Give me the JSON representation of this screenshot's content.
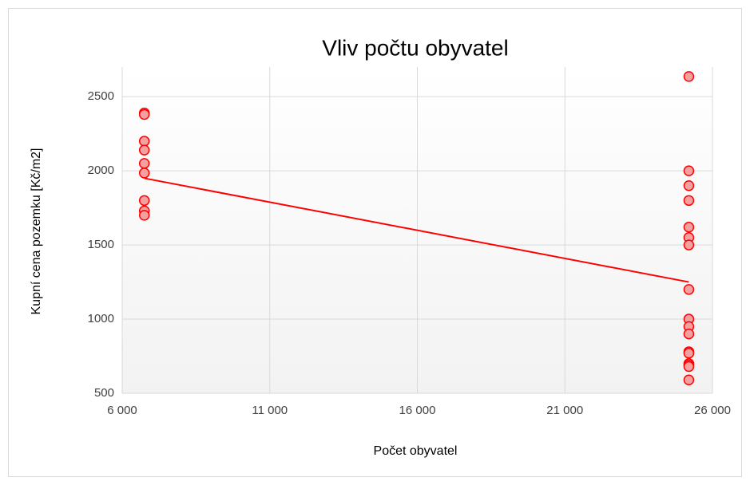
{
  "chart_data": {
    "type": "scatter",
    "title": "Vliv počtu obyvatel",
    "xlabel": "Počet obyvatel",
    "ylabel": "Kupní cena pozemku [Kč/m2]",
    "x": [
      6750,
      6750,
      6750,
      6750,
      6750,
      6750,
      6750,
      6750,
      6750,
      25200,
      25200,
      25200,
      25200,
      25200,
      25200,
      25200,
      25200,
      25200,
      25200,
      25200,
      25200,
      25200,
      25200,
      25200,
      25200,
      25200
    ],
    "values": [
      2390,
      2380,
      2200,
      2140,
      2050,
      1985,
      1800,
      1730,
      1700,
      2636,
      2000,
      1900,
      1800,
      1620,
      1550,
      1500,
      1200,
      1000,
      950,
      900,
      780,
      770,
      700,
      690,
      680,
      590
    ],
    "color": "#ff0000",
    "marker_fill": "#f4a0a0",
    "trendline": {
      "x": [
        6750,
        25200
      ],
      "y": [
        1950,
        1250
      ],
      "color": "#ff0000"
    },
    "xlim": [
      6000,
      26000
    ],
    "xticks": [
      {
        "value": 6000,
        "label": "6 000"
      },
      {
        "value": 11000,
        "label": "11 000"
      },
      {
        "value": 16000,
        "label": "16 000"
      },
      {
        "value": 21000,
        "label": "21 000"
      },
      {
        "value": 26000,
        "label": "26 000"
      }
    ],
    "ylim": [
      500,
      2700
    ],
    "yticks": [
      500,
      1000,
      1500,
      2000,
      2500
    ],
    "grid": true
  }
}
